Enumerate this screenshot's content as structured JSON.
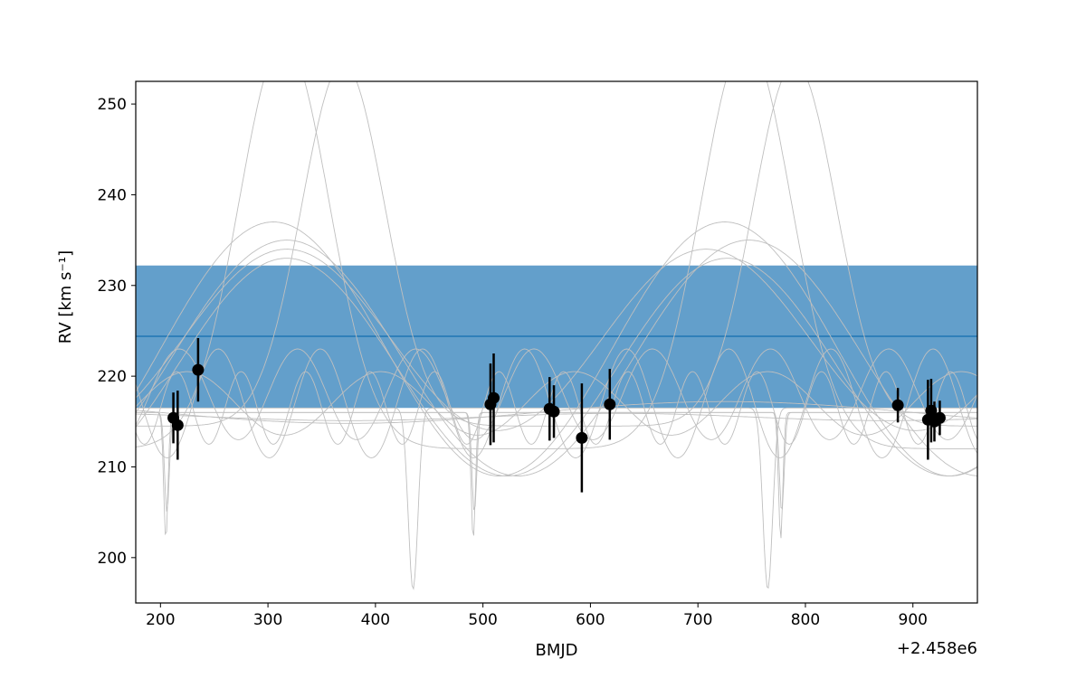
{
  "chart_data": {
    "type": "scatter",
    "xlabel": "BMJD",
    "ylabel": "RV [km s⁻¹]",
    "x_offset_label": "+2.458e6",
    "xlim": [
      177,
      960
    ],
    "ylim": [
      195,
      252.5
    ],
    "x_ticks": [
      200,
      300,
      400,
      500,
      600,
      700,
      800,
      900
    ],
    "y_ticks": [
      200,
      210,
      220,
      230,
      240,
      250
    ],
    "grid": false,
    "band": {
      "y_low": 216.5,
      "y_high": 232.2,
      "y_mid": 224.4,
      "fill_color": "#639fcb",
      "line_color": "#1f77b4"
    },
    "points": [
      {
        "x": 212,
        "y": 215.4,
        "err": 2.8
      },
      {
        "x": 216,
        "y": 214.6,
        "err": 3.8
      },
      {
        "x": 235,
        "y": 220.7,
        "err": 3.5
      },
      {
        "x": 507,
        "y": 216.9,
        "err": 4.5
      },
      {
        "x": 510,
        "y": 217.6,
        "err": 4.9
      },
      {
        "x": 562,
        "y": 216.4,
        "err": 3.5
      },
      {
        "x": 566,
        "y": 216.1,
        "err": 2.9
      },
      {
        "x": 592,
        "y": 213.2,
        "err": 6.0
      },
      {
        "x": 618,
        "y": 216.9,
        "err": 3.9
      },
      {
        "x": 886,
        "y": 216.8,
        "err": 1.9
      },
      {
        "x": 914,
        "y": 215.2,
        "err": 4.4
      },
      {
        "x": 917,
        "y": 216.2,
        "err": 3.5
      },
      {
        "x": 920,
        "y": 215.0,
        "err": 2.2
      },
      {
        "x": 925,
        "y": 215.4,
        "err": 1.9
      }
    ],
    "colors": {
      "points": "#000000",
      "model_curves": "#bfbfbf",
      "axes": "#000000"
    }
  }
}
